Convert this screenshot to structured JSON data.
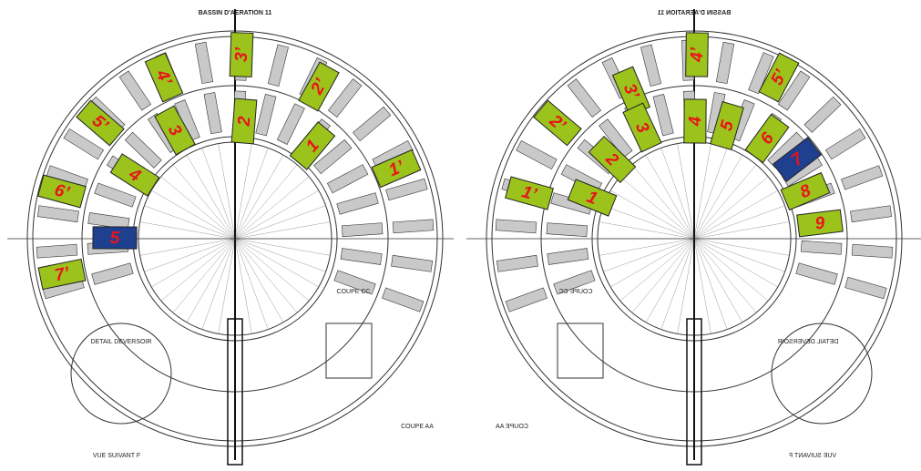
{
  "left": {
    "title": "BASSIN D'AERATION 11",
    "notes": [
      "COUPE CC",
      "DETAIL DEVERSOIR",
      "COUPE AA",
      "VUE SUIVANT F"
    ],
    "labels": [
      {
        "text": "3’",
        "color": "#9bc31c"
      },
      {
        "text": "2’",
        "color": "#9bc31c"
      },
      {
        "text": "4’",
        "color": "#9bc31c"
      },
      {
        "text": "2",
        "color": "#9bc31c"
      },
      {
        "text": "1",
        "color": "#9bc31c"
      },
      {
        "text": "3",
        "color": "#9bc31c"
      },
      {
        "text": "5’",
        "color": "#9bc31c"
      },
      {
        "text": "4",
        "color": "#9bc31c"
      },
      {
        "text": "6’",
        "color": "#9bc31c"
      },
      {
        "text": "1’",
        "color": "#9bc31c"
      },
      {
        "text": "5",
        "color": "#1f3f8f"
      },
      {
        "text": "7’",
        "color": "#9bc31c"
      }
    ]
  },
  "right": {
    "title": "BASSIN D'AERATION 11",
    "notes": [
      "COUPE CC",
      "DETAIL DEVERSOIR",
      "COUPE AA",
      "VUE SUIVANT F"
    ],
    "labels": [
      {
        "text": "4’",
        "color": "#9bc31c"
      },
      {
        "text": "5’",
        "color": "#9bc31c"
      },
      {
        "text": "3’",
        "color": "#9bc31c"
      },
      {
        "text": "4",
        "color": "#9bc31c"
      },
      {
        "text": "5",
        "color": "#9bc31c"
      },
      {
        "text": "6",
        "color": "#9bc31c"
      },
      {
        "text": "2’",
        "color": "#9bc31c"
      },
      {
        "text": "3",
        "color": "#9bc31c"
      },
      {
        "text": "7",
        "color": "#1f3f8f"
      },
      {
        "text": "2",
        "color": "#9bc31c"
      },
      {
        "text": "8",
        "color": "#9bc31c"
      },
      {
        "text": "1’",
        "color": "#9bc31c"
      },
      {
        "text": "1",
        "color": "#9bc31c"
      },
      {
        "text": "9",
        "color": "#9bc31c"
      }
    ]
  }
}
